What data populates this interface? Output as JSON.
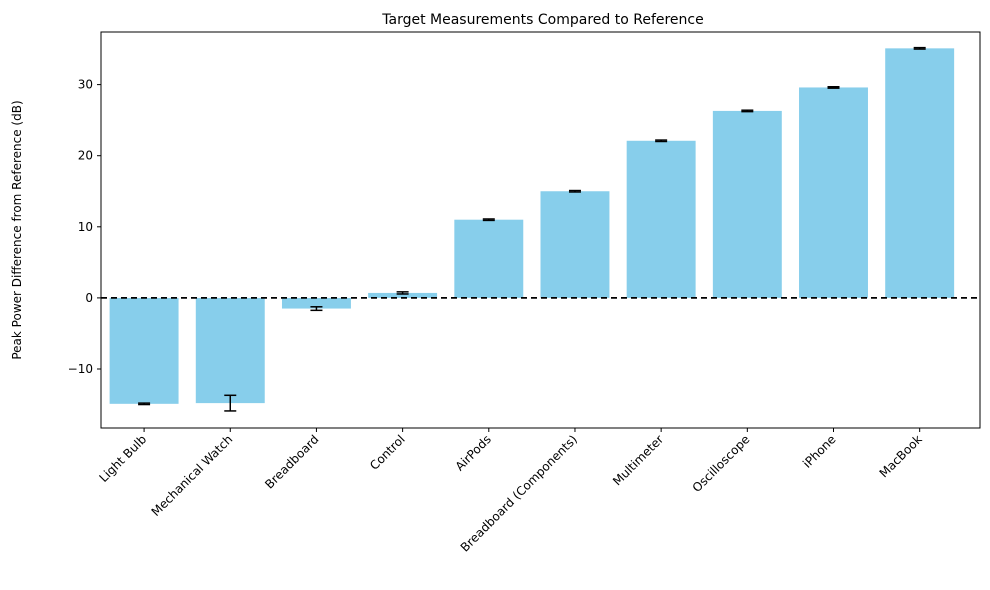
{
  "chart_data": {
    "type": "bar",
    "title": "Target Measurements Compared to Reference",
    "xlabel": "",
    "ylabel": "Peak Power Difference from Reference (dB)",
    "categories": [
      "Light Bulb",
      "Mechanical Watch",
      "Breadboard",
      "Control",
      "AirPods",
      "Breadboard (Components)",
      "Multimeter",
      "Oscilloscope",
      "iPhone",
      "MacBook"
    ],
    "values": [
      -14.9,
      -14.8,
      -1.5,
      0.7,
      11.0,
      15.0,
      22.1,
      26.3,
      29.6,
      35.1
    ],
    "errors": [
      0.1,
      1.1,
      0.25,
      0.15,
      0.1,
      0.1,
      0.1,
      0.1,
      0.1,
      0.1
    ],
    "ylim": [
      -18.3,
      37.4
    ],
    "yticks": [
      -10,
      0,
      10,
      20,
      30
    ],
    "reference_line": 0,
    "grid": false,
    "colors": {
      "bar": "#87ceeb",
      "error": "#000000",
      "reference": "#000000"
    }
  }
}
